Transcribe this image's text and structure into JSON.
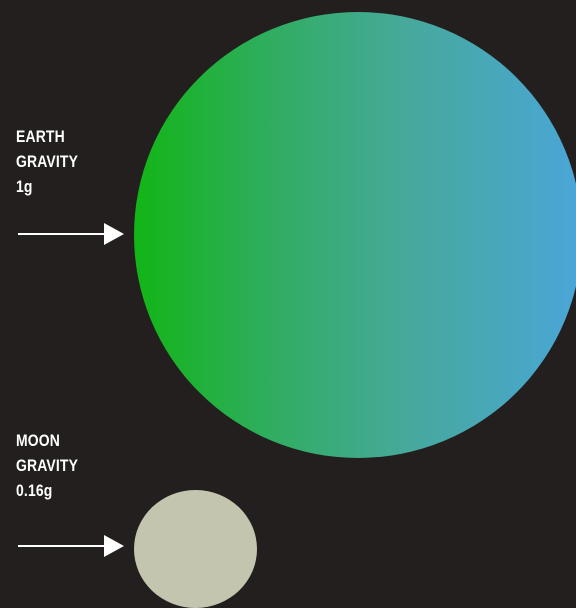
{
  "earth": {
    "label_lines": [
      "EARTH",
      "GRAVITY",
      "1g"
    ],
    "color_start": "#12b516",
    "color_end": "#4aa6d8"
  },
  "moon": {
    "label_lines": [
      "MOON",
      "GRAVITY",
      "0.16g"
    ],
    "color": "#c4c5af"
  },
  "arrow_icon": "right-arrow-icon",
  "background_color": "#231f1e"
}
